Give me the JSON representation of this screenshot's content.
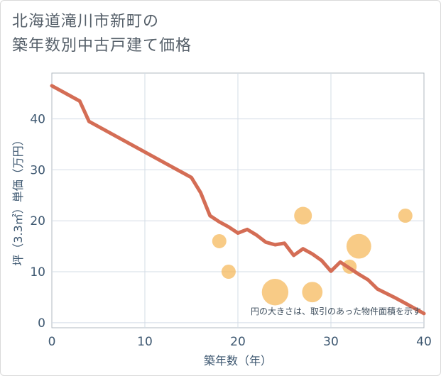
{
  "title": {
    "line1": "北海道滝川市新町の",
    "line2": "築年数別中古戸建て価格"
  },
  "colors": {
    "line": "#d46d55",
    "bubble": "#f5b553",
    "grid": "#d3dce6",
    "axis_text": "#3d5770"
  },
  "chart_data": {
    "type": "line",
    "title": "北海道滝川市新町の築年数別中古戸建て価格",
    "xlabel": "築年数（年）",
    "ylabel": "坪（3.3㎡）単価（万円）",
    "xlim": [
      0,
      40
    ],
    "ylim": [
      -1,
      49
    ],
    "xticks": [
      "0",
      "10",
      "20",
      "30",
      "40"
    ],
    "yticks": [
      "0",
      "10",
      "20",
      "30",
      "40"
    ],
    "xtick_values": [
      0,
      10,
      20,
      30,
      40
    ],
    "ytick_values": [
      0,
      10,
      20,
      30,
      40
    ],
    "grid": true,
    "series": [
      {
        "name": "trend",
        "type": "line",
        "x": [
          0,
          3,
          4,
          6,
          8,
          10,
          12,
          14,
          15,
          16,
          17,
          18,
          19,
          20,
          21,
          22,
          23,
          24,
          25,
          26,
          27,
          28,
          29,
          30,
          31,
          32,
          33,
          34,
          35,
          36,
          37,
          38,
          39,
          40
        ],
        "y": [
          46.5,
          43.5,
          39.5,
          37.5,
          35.5,
          33.5,
          31.5,
          29.5,
          28.5,
          25.5,
          21.0,
          19.8,
          18.8,
          17.6,
          18.3,
          17.2,
          15.8,
          15.3,
          15.6,
          13.2,
          14.5,
          13.5,
          12.2,
          10.1,
          11.9,
          10.7,
          9.5,
          8.4,
          6.6,
          5.7,
          4.8,
          3.8,
          2.8,
          1.8
        ]
      },
      {
        "name": "transactions",
        "type": "bubble",
        "x": [
          18,
          19,
          24,
          27,
          28,
          32,
          33,
          38
        ],
        "y": [
          16,
          10,
          6,
          21,
          6,
          11,
          15,
          21
        ],
        "size": [
          1,
          1,
          6,
          2,
          3,
          1,
          5,
          1
        ]
      }
    ],
    "annotation": "円の大きさは、取引のあった物件面積を示す"
  }
}
